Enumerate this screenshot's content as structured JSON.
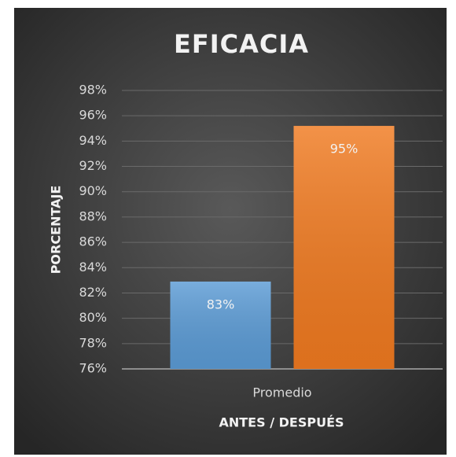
{
  "chart_data": {
    "type": "bar",
    "title": "EFICACIA",
    "categories": [
      "Promedio"
    ],
    "series": [
      {
        "color": "#5b9bd5",
        "values": [
          82.9
        ],
        "value_labels": [
          "83%"
        ]
      },
      {
        "color": "#f07a20",
        "values": [
          95.2
        ],
        "value_labels": [
          "95%"
        ]
      }
    ],
    "x_label": "ANTES / DESPUÉS",
    "y_label": "PORCENTAJE",
    "ylim": [
      76,
      98
    ],
    "yticks": [
      {
        "value": 76,
        "label": "76%"
      },
      {
        "value": 78,
        "label": "78%"
      },
      {
        "value": 80,
        "label": "80%"
      },
      {
        "value": 82,
        "label": "82%"
      },
      {
        "value": 84,
        "label": "84%"
      },
      {
        "value": 86,
        "label": "86%"
      },
      {
        "value": 88,
        "label": "88%"
      },
      {
        "value": 90,
        "label": "90%"
      },
      {
        "value": 92,
        "label": "92%"
      },
      {
        "value": 94,
        "label": "94%"
      },
      {
        "value": 96,
        "label": "96%"
      },
      {
        "value": 98,
        "label": "98%"
      }
    ],
    "grid": true
  }
}
